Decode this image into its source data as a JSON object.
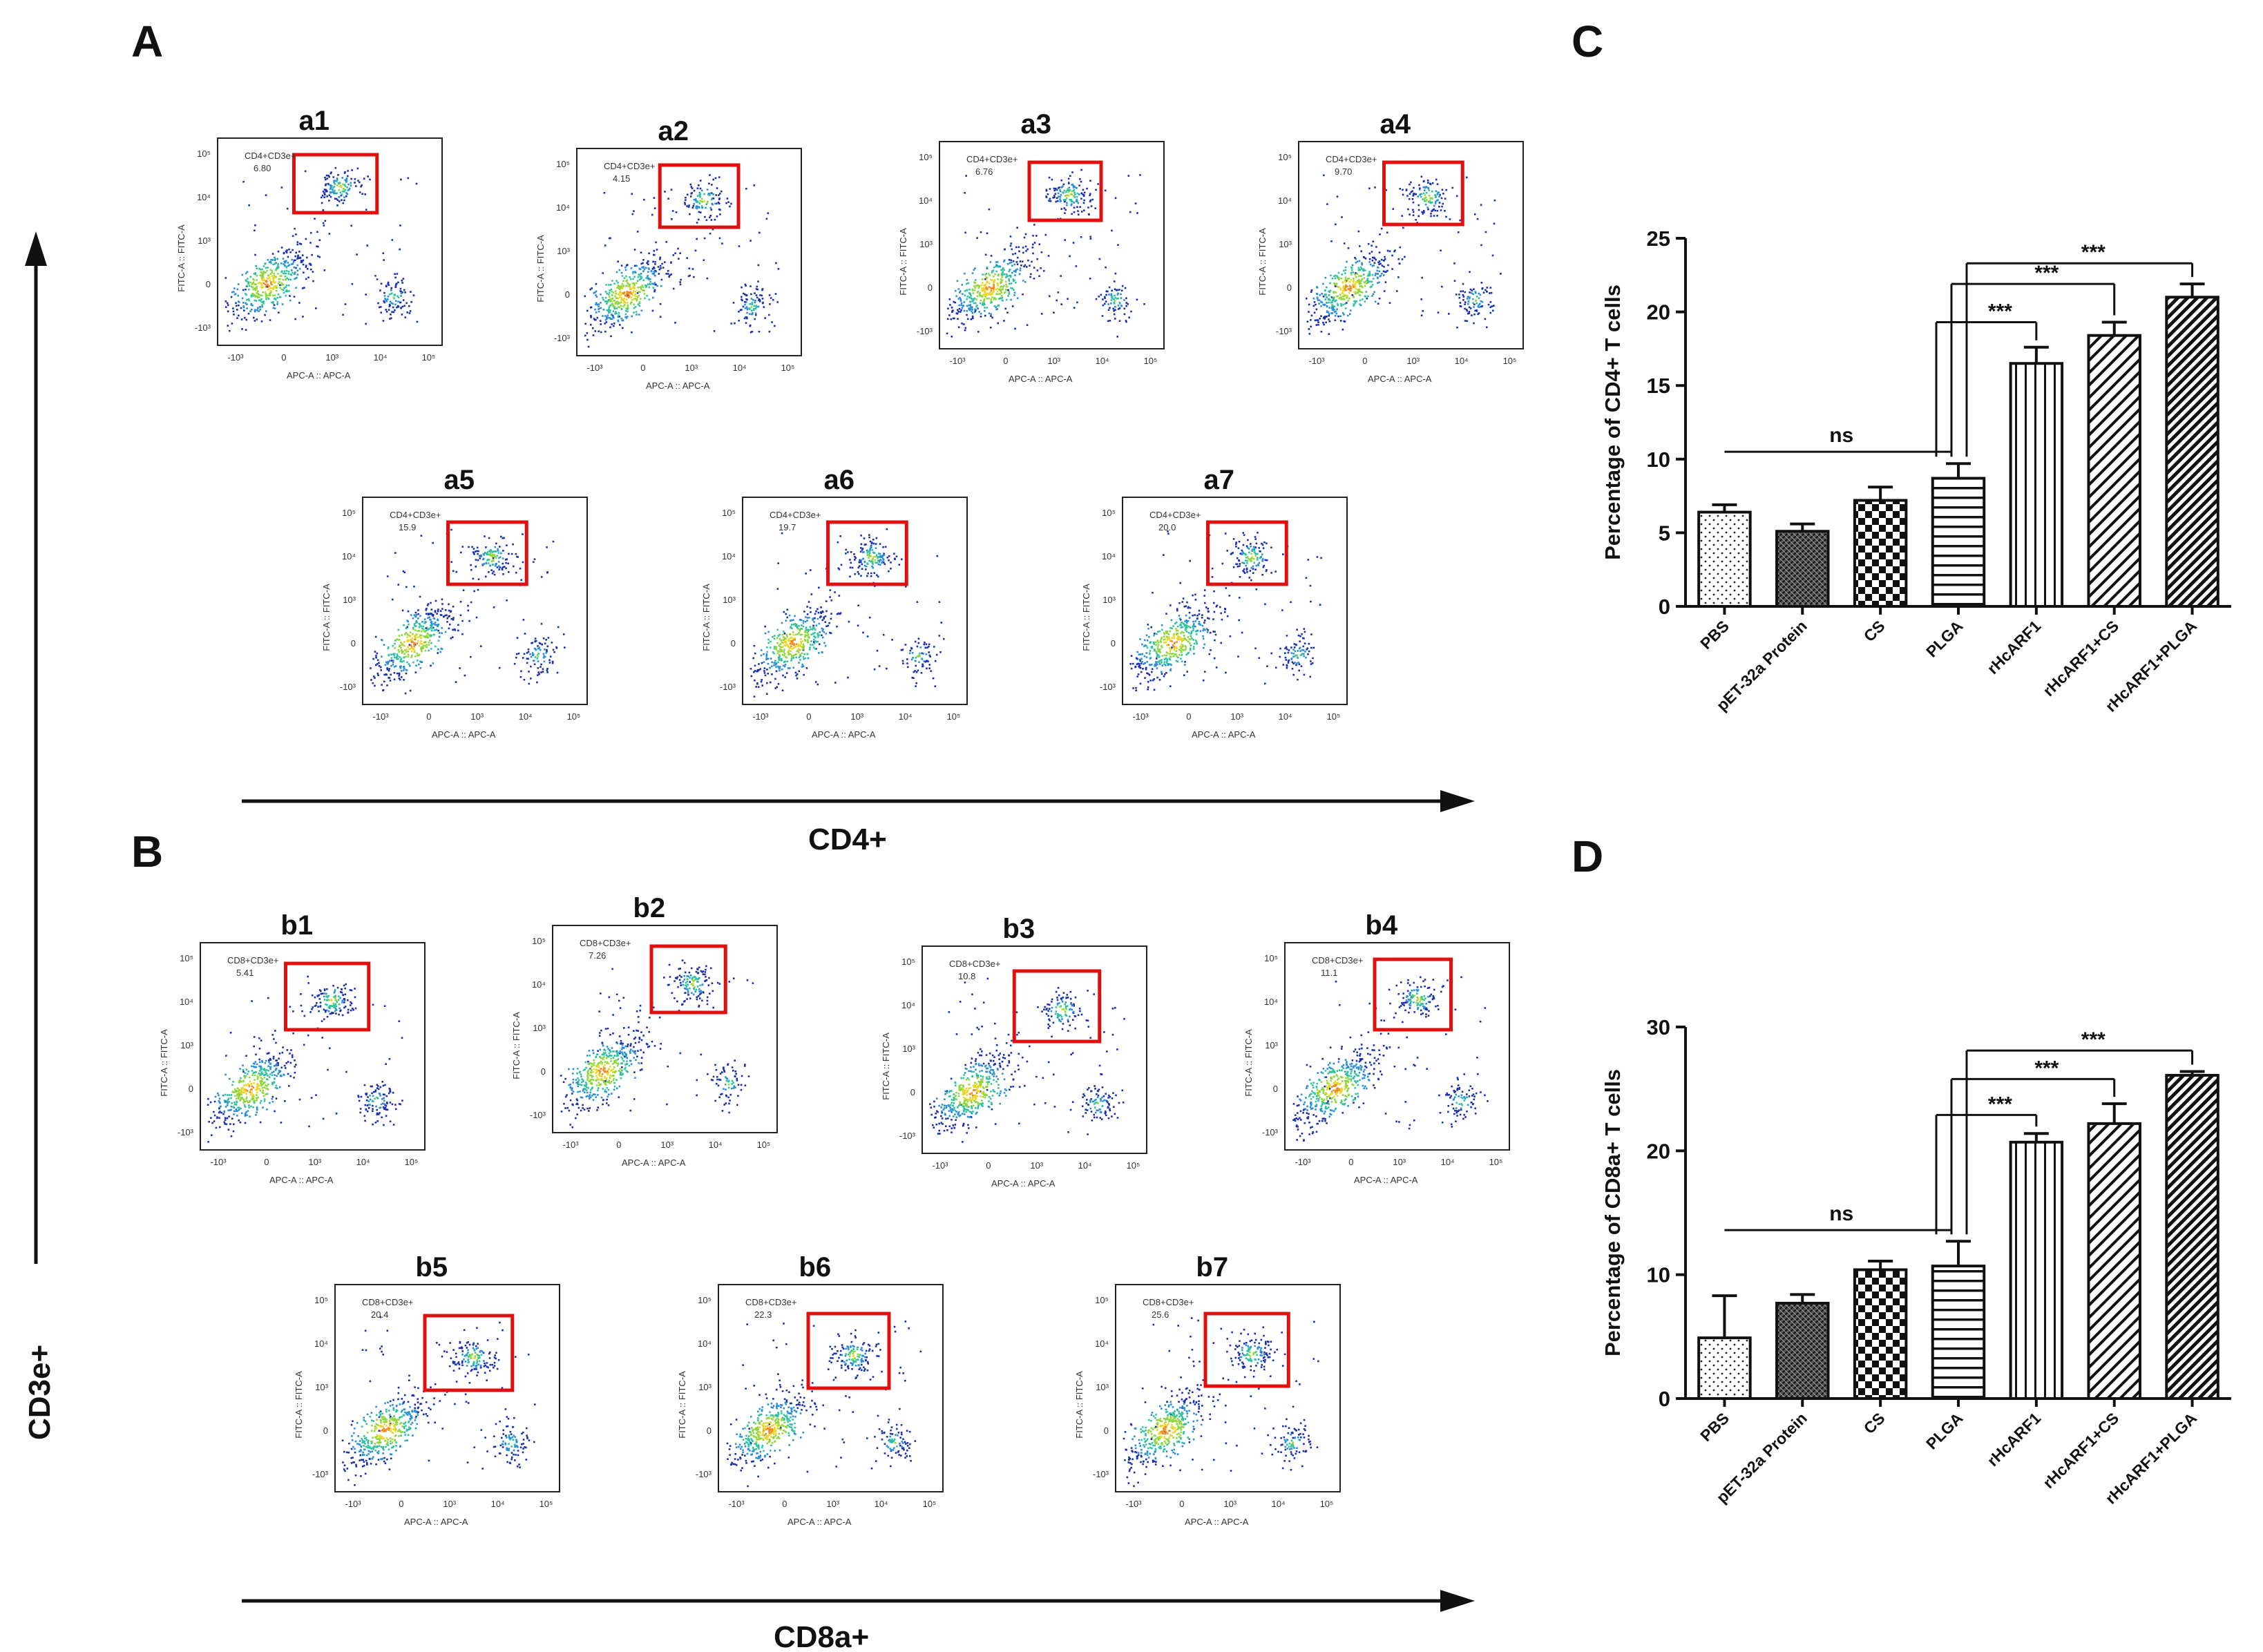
{
  "panels": {
    "A": "A",
    "B": "B",
    "C": "C",
    "D": "D"
  },
  "axes": {
    "vertical_label": "CD3e+",
    "cd4_label": "CD4+",
    "cd8_label": "CD8a+"
  },
  "flow_common": {
    "x_axis": "APC-A :: APC-A",
    "y_axis": "FITC-A :: FITC-A",
    "ticks_x": [
      "-10³",
      "0",
      "10³",
      "10⁴",
      "10⁵"
    ],
    "ticks_y": [
      "-10³",
      "0",
      "10³",
      "10⁴",
      "10⁵"
    ]
  },
  "flow_panels_A": [
    {
      "name": "a1",
      "gate": "CD4+CD3e+",
      "value": "6.80"
    },
    {
      "name": "a2",
      "gate": "CD4+CD3e+",
      "value": "4.15"
    },
    {
      "name": "a3",
      "gate": "CD4+CD3e+",
      "value": "6.76"
    },
    {
      "name": "a4",
      "gate": "CD4+CD3e+",
      "value": "9.70"
    },
    {
      "name": "a5",
      "gate": "CD4+CD3e+",
      "value": "15.9"
    },
    {
      "name": "a6",
      "gate": "CD4+CD3e+",
      "value": "19.7"
    },
    {
      "name": "a7",
      "gate": "CD4+CD3e+",
      "value": "20.0"
    }
  ],
  "flow_panels_B": [
    {
      "name": "b1",
      "gate": "CD8+CD3e+",
      "value": "5.41"
    },
    {
      "name": "b2",
      "gate": "CD8+CD3e+",
      "value": "7.26"
    },
    {
      "name": "b3",
      "gate": "CD8+CD3e+",
      "value": "10.8"
    },
    {
      "name": "b4",
      "gate": "CD8+CD3e+",
      "value": "11.1"
    },
    {
      "name": "b5",
      "gate": "CD8+CD3e+",
      "value": "20.4"
    },
    {
      "name": "b6",
      "gate": "CD8+CD3e+",
      "value": "22.3"
    },
    {
      "name": "b7",
      "gate": "CD8+CD3e+",
      "value": "25.6"
    }
  ],
  "chart_data": [
    {
      "type": "bar",
      "panel": "C",
      "categories": [
        "PBS",
        "pET-32a Protein",
        "CS",
        "PLGA",
        "rHcARF1",
        "rHcARF1+CS",
        "rHcARF1+PLGA"
      ],
      "values": [
        6.4,
        5.1,
        7.2,
        8.7,
        16.5,
        18.4,
        21.0
      ],
      "errors": [
        0.5,
        0.5,
        0.9,
        1.0,
        1.1,
        0.9,
        0.9
      ],
      "ylabel": "Percentage of CD4+ T cells",
      "ylim": [
        0,
        25
      ],
      "yticks": [
        "0",
        "5",
        "10",
        "15",
        "20",
        "25"
      ],
      "significance": [
        {
          "label": "ns",
          "from": "PBS",
          "to": "PLGA"
        },
        {
          "label": "***",
          "from": "PLGA",
          "to": "rHcARF1"
        },
        {
          "label": "***",
          "from": "PLGA",
          "to": "rHcARF1+CS"
        },
        {
          "label": "***",
          "from": "PLGA",
          "to": "rHcARF1+PLGA"
        }
      ]
    },
    {
      "type": "bar",
      "panel": "D",
      "categories": [
        "PBS",
        "pET-32a Protein",
        "CS",
        "PLGA",
        "rHcARF1",
        "rHcARF1+CS",
        "rHcARF1+PLGA"
      ],
      "values": [
        4.9,
        7.7,
        10.4,
        10.7,
        20.7,
        22.2,
        26.1
      ],
      "errors": [
        3.4,
        0.7,
        0.7,
        2.0,
        0.7,
        1.6,
        0.3
      ],
      "ylabel": "Percentage of CD8a+ T cells",
      "ylim": [
        0,
        30
      ],
      "yticks": [
        "0",
        "10",
        "20",
        "30"
      ],
      "significance": [
        {
          "label": "ns",
          "from": "PBS",
          "to": "PLGA"
        },
        {
          "label": "***",
          "from": "PLGA",
          "to": "rHcARF1"
        },
        {
          "label": "***",
          "from": "PLGA",
          "to": "rHcARF1+CS"
        },
        {
          "label": "***",
          "from": "PLGA",
          "to": "rHcARF1+PLGA"
        }
      ]
    }
  ]
}
